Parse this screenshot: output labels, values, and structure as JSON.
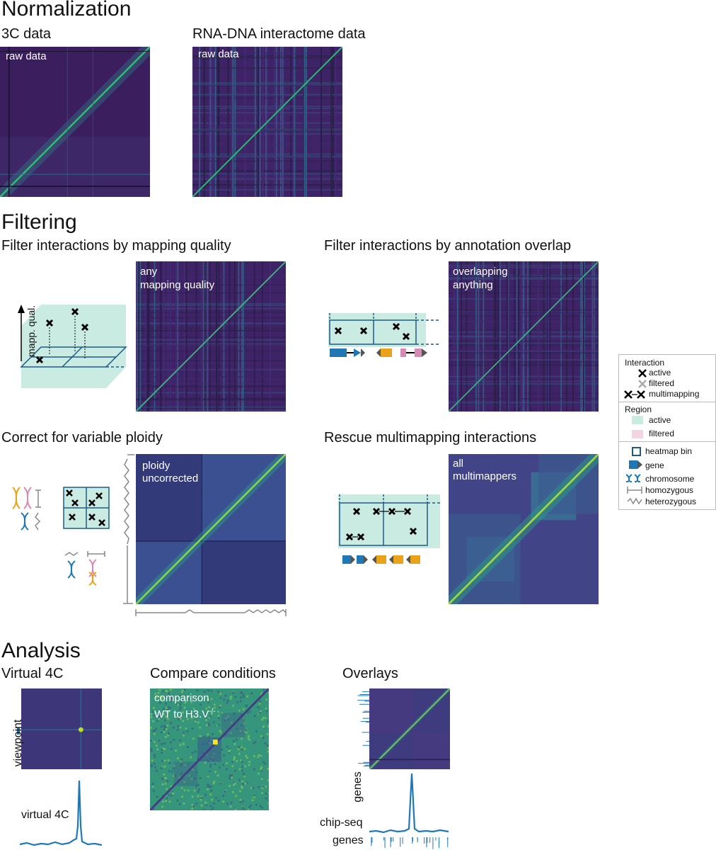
{
  "sections": {
    "normalization": "Normalization",
    "filtering": "Filtering",
    "analysis": "Analysis"
  },
  "panels": {
    "c3": {
      "title": "3C data",
      "label": "raw data"
    },
    "rna": {
      "title": "RNA-DNA interactome data",
      "label": "raw data"
    },
    "mapq": {
      "title": "Filter interactions by mapping quality",
      "label_line1": "any",
      "label_line2": "mapping quality",
      "axis": "mapp. qual."
    },
    "annot": {
      "title": "Filter interactions by annotation overlap",
      "label_line1": "overlapping",
      "label_line2": "anything"
    },
    "ploidy": {
      "title": "Correct for variable ploidy",
      "label_line1": "ploidy",
      "label_line2": "uncorrected"
    },
    "multi": {
      "title": "Rescue multimapping interactions",
      "label_line1": "all",
      "label_line2": "multimappers"
    },
    "v4c": {
      "title": "Virtual 4C",
      "axis": "viewpoint",
      "track": "virtual 4C"
    },
    "compare": {
      "title": "Compare conditions",
      "label_line1": "comparison",
      "label_line2_prefix": "WT to H3.V",
      "label_line2_sup": "-/-"
    },
    "overlays": {
      "title": "Overlays",
      "axis": "genes",
      "track1": "chip-seq",
      "track2": "genes"
    }
  },
  "legend": {
    "interaction_title": "Interaction",
    "active": "active",
    "filtered": "filtered",
    "multimapping": "multimapping",
    "region_title": "Region",
    "region_active": "active",
    "region_filtered": "filtered",
    "heatmap_bin": "heatmap bin",
    "gene": "gene",
    "chromosome": "chromosome",
    "homozygous": "homozygous",
    "heterozygous": "heterozygous"
  },
  "colors": {
    "background_dark": "#3b1e5e",
    "diagonal": "#35b779",
    "active_region": "#c9ebe1",
    "filtered_region": "#f2d5e3",
    "gene_blue": "#1f77b4",
    "gene_orange": "#e8a31a",
    "gene_pink": "#d58bb4",
    "track_blue": "#1f78b4"
  }
}
